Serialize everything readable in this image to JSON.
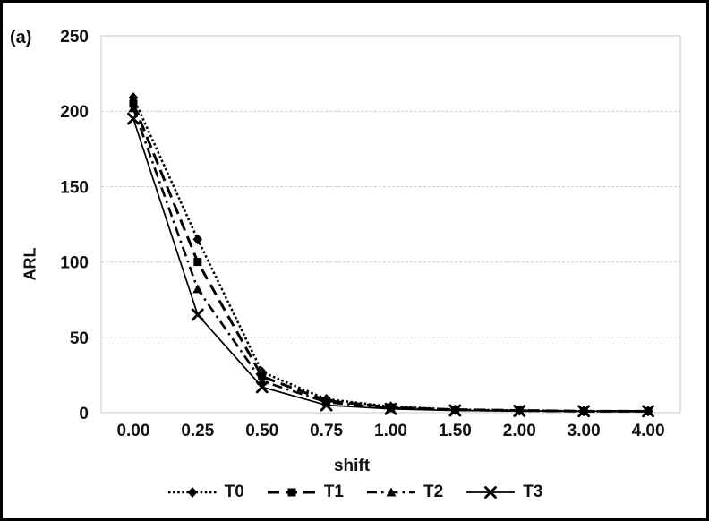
{
  "figure_label": "(a)",
  "chart_data": {
    "type": "line",
    "title": "",
    "xlabel": "shift",
    "ylabel": "ARL",
    "categories": [
      "0.00",
      "0.25",
      "0.50",
      "0.75",
      "1.00",
      "1.50",
      "2.00",
      "3.00",
      "4.00"
    ],
    "y_ticks": [
      0,
      50,
      100,
      150,
      200,
      250
    ],
    "ylim": [
      0,
      250
    ],
    "grid": "horizontal",
    "legend_position": "bottom",
    "series": [
      {
        "name": "T0",
        "marker": "diamond",
        "line": "dotted",
        "values": [
          209,
          115,
          27,
          9,
          4,
          2,
          1.5,
          1,
          1
        ]
      },
      {
        "name": "T1",
        "marker": "square",
        "line": "dashed",
        "values": [
          205,
          100,
          24,
          8,
          3.5,
          2,
          1.5,
          1,
          1
        ]
      },
      {
        "name": "T2",
        "marker": "triangle",
        "line": "dashdot",
        "values": [
          202,
          82,
          21,
          7,
          3,
          1.8,
          1.3,
          1,
          1
        ]
      },
      {
        "name": "T3",
        "marker": "x",
        "line": "solid",
        "values": [
          195,
          65,
          17,
          5,
          2.5,
          1.5,
          1.2,
          1,
          1
        ]
      }
    ],
    "colors": {
      "series": "#000000",
      "gridline": "#c9c9c9",
      "plot_border": "#c9c9c9",
      "text": "#111111"
    }
  }
}
